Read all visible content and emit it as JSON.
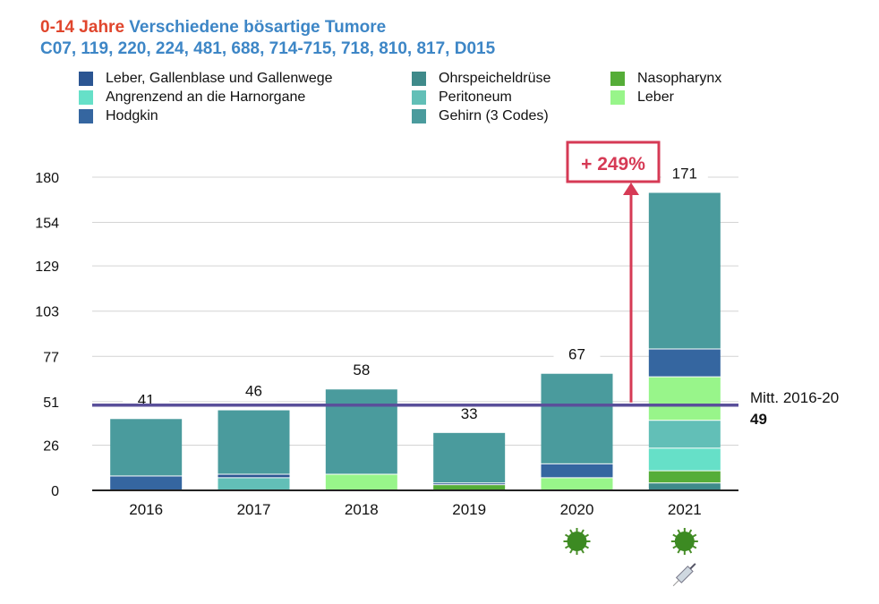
{
  "chart_data": {
    "type": "bar",
    "stacked": true,
    "title_part1": "0-14 Jahre",
    "title_part2": "Verschiedene bösartige Tumore",
    "subtitle": "C07, 119, 220, 224, 481, 688, 714-715, 718, 810, 817, D015",
    "categories": [
      "2016",
      "2017",
      "2018",
      "2019",
      "2020",
      "2021"
    ],
    "totals": [
      "41",
      "46",
      "58",
      "33",
      "67",
      "171"
    ],
    "yticks": [
      "0",
      "26",
      "51",
      "77",
      "103",
      "129",
      "154",
      "180"
    ],
    "ylim": [
      0,
      180
    ],
    "grid": true,
    "legend_order": [
      "Leber, Gallenblase und Gallenwege",
      "Ohrspeicheldrüse",
      "Nasopharynx",
      "Angrenzend an die Harnorgane",
      "Peritoneum",
      "Leber",
      "Hodgkin",
      "Gehirn (3 Codes)"
    ],
    "series": [
      {
        "name": "Ohrspeicheldrüse",
        "color": "#3f8a8a",
        "values": [
          0,
          0,
          0,
          0,
          0,
          4
        ]
      },
      {
        "name": "Nasopharynx",
        "color": "#55ad38",
        "values": [
          0,
          0,
          0,
          3,
          0,
          7
        ]
      },
      {
        "name": "Angrenzend an die Harnorgane",
        "color": "#66e0c8",
        "values": [
          0,
          0,
          0,
          0,
          0,
          13
        ]
      },
      {
        "name": "Peritoneum",
        "color": "#62bfb7",
        "values": [
          0,
          7,
          0,
          0,
          0,
          16
        ]
      },
      {
        "name": "Leber, Gallenblase und Gallenwege",
        "color": "#2b5592",
        "values": [
          0,
          2,
          0,
          1,
          0,
          0
        ]
      },
      {
        "name": "Leber",
        "color": "#98f58a",
        "values": [
          0,
          0,
          9,
          0,
          7,
          25
        ]
      },
      {
        "name": "Hodgkin",
        "color": "#3566a0",
        "values": [
          8,
          0,
          0,
          0,
          8,
          16
        ]
      },
      {
        "name": "Gehirn (3 Codes)",
        "color": "#4a9b9d",
        "values": [
          33,
          37,
          49,
          29,
          52,
          90
        ]
      }
    ],
    "mean_line": {
      "label": "Mitt. 2016-20",
      "value": 49,
      "value_label": "49",
      "color": "#5a4f9a"
    },
    "annotation": {
      "label": "+ 249%",
      "color": "#d63a55"
    },
    "icons": {
      "2020": [
        "virus-icon"
      ],
      "2021": [
        "virus-icon",
        "syringe-icon"
      ]
    }
  }
}
